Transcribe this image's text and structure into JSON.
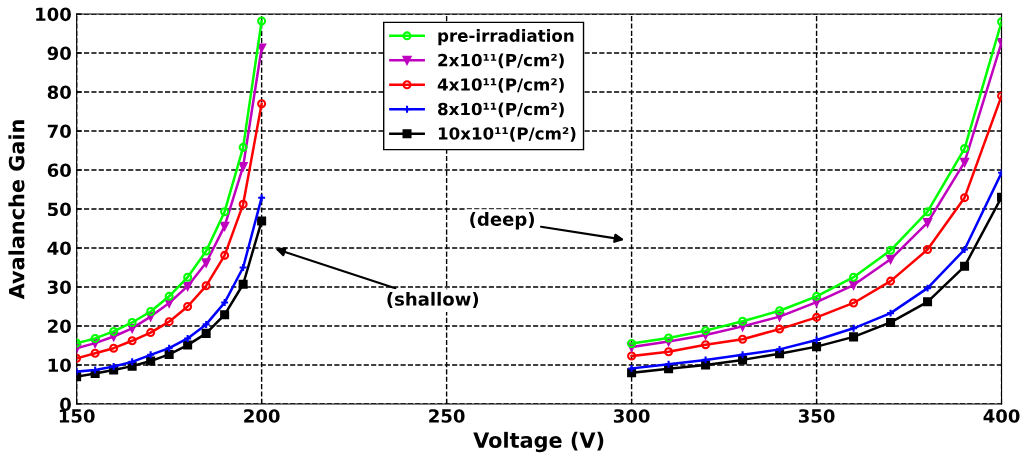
{
  "chart_data": {
    "type": "line",
    "xlabel": "Voltage (V)",
    "ylabel": "Avalanche Gain",
    "x": [
      150,
      155,
      160,
      165,
      170,
      175,
      180,
      185,
      190,
      195,
      200,
      250,
      300,
      310,
      320,
      330,
      340,
      350,
      360,
      370,
      380,
      390,
      400
    ],
    "series": [
      {
        "name": "pre-irradiation",
        "color": "#00ff00",
        "marker": "circle",
        "values": [
          15.6,
          16.8,
          18.6,
          20.9,
          23.7,
          27.6,
          32.5,
          39.2,
          49.3,
          65.8,
          98.2,
          null,
          15.5,
          16.9,
          18.8,
          21.2,
          23.9,
          27.6,
          32.5,
          39.4,
          49.3,
          65.5,
          98
        ]
      },
      {
        "name": "2x10¹¹(P/cm²)",
        "color": "#bf00bf",
        "marker": "triangle",
        "values": [
          14.3,
          15.6,
          17.3,
          19.4,
          22.4,
          25.9,
          30.2,
          36.2,
          45.6,
          60.9,
          91.3,
          null,
          14.6,
          16.0,
          17.7,
          19.9,
          22.4,
          26.1,
          30.5,
          37.1,
          46.5,
          62,
          92.7
        ]
      },
      {
        "name": "4x10¹¹(P/cm²)",
        "color": "#ff0000",
        "marker": "circle",
        "values": [
          11.7,
          13.0,
          14.3,
          16.2,
          18.3,
          21.1,
          25.0,
          30.3,
          38.1,
          51.2,
          77.0,
          null,
          12.3,
          13.4,
          15.2,
          16.6,
          19.2,
          22.2,
          25.9,
          31.5,
          39.6,
          52.9,
          79.0
        ]
      },
      {
        "name": "8x10¹¹(P/cm²)",
        "color": "#0000ff",
        "marker": "cross",
        "values": [
          8.3,
          8.7,
          9.6,
          10.8,
          12.6,
          14.3,
          16.8,
          20.4,
          26.0,
          35.0,
          52.9,
          null,
          9.1,
          10.2,
          11.3,
          12.6,
          14.0,
          16.4,
          19.4,
          23.3,
          29.7,
          39.6,
          59.3
        ]
      },
      {
        "name": "10x10¹¹(P/cm²)",
        "color": "#000000",
        "marker": "square",
        "values": [
          7.0,
          7.8,
          8.7,
          9.7,
          11.0,
          12.7,
          15.1,
          18.1,
          22.9,
          30.7,
          46.9,
          null,
          8.0,
          9.0,
          10.0,
          11.3,
          12.9,
          14.7,
          17.2,
          20.9,
          26.2,
          35.3,
          53.0
        ]
      }
    ],
    "xlim": [
      150,
      400
    ],
    "xticks": [
      150,
      200,
      250,
      300,
      350,
      400
    ],
    "ylim": [
      0,
      100
    ],
    "yticks": [
      0,
      10,
      20,
      30,
      40,
      50,
      60,
      70,
      80,
      90,
      100
    ],
    "grid": true,
    "legend": "top",
    "line_style": "solid",
    "annotations": [
      "(shallow)",
      "(deep)"
    ]
  }
}
